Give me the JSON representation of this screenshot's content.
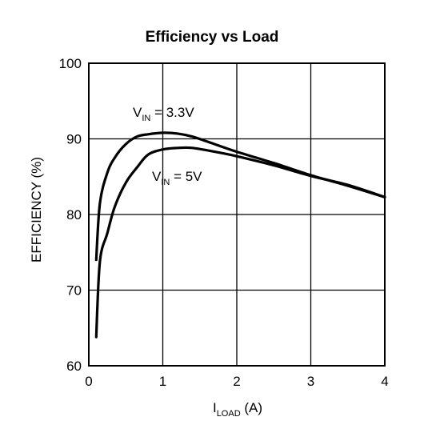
{
  "chart_data": {
    "type": "line",
    "title": "Efficiency vs Load",
    "xlabel": {
      "main": "I",
      "sub": "LOAD",
      "unit": " (A)"
    },
    "ylabel": "EFFICIENCY (%)",
    "xlim": [
      0,
      4
    ],
    "ylim": [
      60,
      100
    ],
    "xticks": [
      "0",
      "1",
      "2",
      "3",
      "4"
    ],
    "yticks": [
      "60",
      "70",
      "80",
      "90",
      "100"
    ],
    "grid": true,
    "series": [
      {
        "name": {
          "main": "V",
          "sub": "IN",
          "rest": " = 3.3V"
        },
        "x": [
          0.1,
          0.15,
          0.25,
          0.35,
          0.5,
          0.65,
          0.8,
          1.0,
          1.2,
          1.4,
          1.7,
          2.0,
          2.5,
          3.0,
          3.5,
          4.0
        ],
        "y": [
          74.0,
          81.5,
          85.5,
          87.5,
          89.3,
          90.3,
          90.6,
          90.8,
          90.7,
          90.3,
          89.3,
          88.3,
          86.8,
          85.2,
          83.8,
          82.3
        ]
      },
      {
        "name": {
          "main": "V",
          "sub": "IN",
          "rest": " = 5V"
        },
        "x": [
          0.1,
          0.15,
          0.25,
          0.35,
          0.5,
          0.65,
          0.8,
          1.0,
          1.2,
          1.4,
          1.7,
          2.0,
          2.5,
          3.0,
          3.5,
          4.0
        ],
        "y": [
          63.8,
          73.8,
          77.5,
          81.0,
          84.2,
          86.2,
          87.9,
          88.6,
          88.8,
          88.8,
          88.3,
          87.7,
          86.5,
          85.1,
          83.9,
          82.3
        ]
      }
    ]
  }
}
